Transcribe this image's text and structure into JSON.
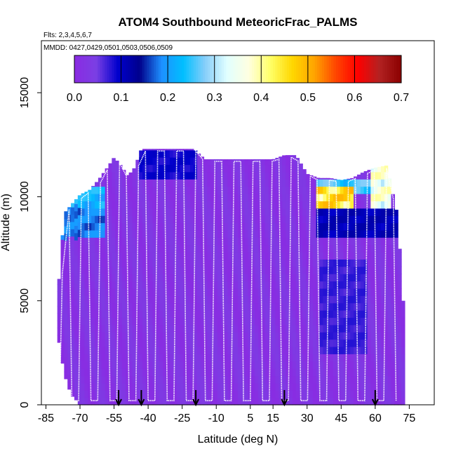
{
  "chart_data": {
    "type": "heatmap",
    "title": "ATOM4 Southbound MeteoricFrac_PALMS",
    "subtitle_flights": "Flts: 2,3,4,5,6,7",
    "subtitle_dates": "MMDD: 0427,0429,0501,0503,0506,0509",
    "xlabel": "Latitude (deg N)",
    "ylabel": "Altitude (m)",
    "xlim": [
      -87,
      86
    ],
    "ylim": [
      0,
      17500
    ],
    "x_ticks": [
      "-85",
      "-70",
      "-55",
      "-40",
      "-25",
      "-10",
      "5",
      "15",
      "30",
      "45",
      "60",
      "75"
    ],
    "y_ticks": [
      "0",
      "5000",
      "10000",
      "15000"
    ],
    "colorbar": {
      "ticks": [
        "0.0",
        "0.1",
        "0.2",
        "0.3",
        "0.4",
        "0.5",
        "0.6",
        "0.7"
      ],
      "range": [
        0,
        0.7
      ],
      "colors": [
        "#8a2be2",
        "#7b3fe4",
        "#0000cd",
        "#00008b",
        "#1e90ff",
        "#00bfff",
        "#87cefa",
        "#e0ffff",
        "#ffffe0",
        "#ffff66",
        "#ffd700",
        "#ffa500",
        "#ff4500",
        "#ff0000",
        "#b22222",
        "#8b0000"
      ],
      "position": "top"
    },
    "arrow_latitudes": [
      -53,
      -43,
      -19,
      20,
      60
    ],
    "coverage": {
      "lat": [
        -80,
        -77,
        -74,
        -70,
        -66,
        -62,
        -58,
        -55,
        -52,
        -49,
        -46,
        -43,
        -40,
        -35,
        -30,
        -25,
        -20,
        -15,
        -10,
        -5,
        0,
        5,
        10,
        15,
        20,
        25,
        30,
        35,
        40,
        45,
        50,
        55,
        60,
        65,
        70,
        72
      ],
      "top_alt": [
        5000,
        9200,
        9600,
        10100,
        10300,
        10800,
        11400,
        11900,
        11500,
        11000,
        11400,
        12300,
        12300,
        12300,
        12300,
        12300,
        12300,
        11800,
        11800,
        11800,
        11800,
        11800,
        11800,
        11800,
        12000,
        12000,
        11100,
        10900,
        10900,
        10800,
        10900,
        11200,
        11400,
        11500,
        9000,
        5000
      ],
      "bottom_alt": [
        3500,
        1500,
        500,
        0,
        0,
        0,
        0,
        0,
        0,
        0,
        0,
        0,
        0,
        0,
        0,
        0,
        0,
        0,
        0,
        0,
        0,
        0,
        0,
        0,
        0,
        0,
        0,
        0,
        0,
        0,
        0,
        0,
        0,
        0,
        0,
        0
      ]
    },
    "features": [
      {
        "lat_range": [
          -80,
          -60
        ],
        "alt_range": [
          8000,
          10000
        ],
        "value": 0.2
      },
      {
        "lat_range": [
          -75,
          -60
        ],
        "alt_range": [
          9500,
          10500
        ],
        "value": 0.25
      },
      {
        "lat_range": [
          -45,
          -20
        ],
        "alt_range": [
          11000,
          12300
        ],
        "value": 0.1
      },
      {
        "lat_range": [
          33,
          50
        ],
        "alt_range": [
          9500,
          10500
        ],
        "value": 0.5
      },
      {
        "lat_range": [
          58,
          66
        ],
        "alt_range": [
          9500,
          11500
        ],
        "value": 0.4
      },
      {
        "lat_range": [
          33,
          72
        ],
        "alt_range": [
          10000,
          11000
        ],
        "value": 0.28
      },
      {
        "lat_range": [
          33,
          72
        ],
        "alt_range": [
          8000,
          9500
        ],
        "value": 0.12
      },
      {
        "lat_range": [
          35,
          55
        ],
        "alt_range": [
          2500,
          7000
        ],
        "value": 0.08
      }
    ]
  }
}
